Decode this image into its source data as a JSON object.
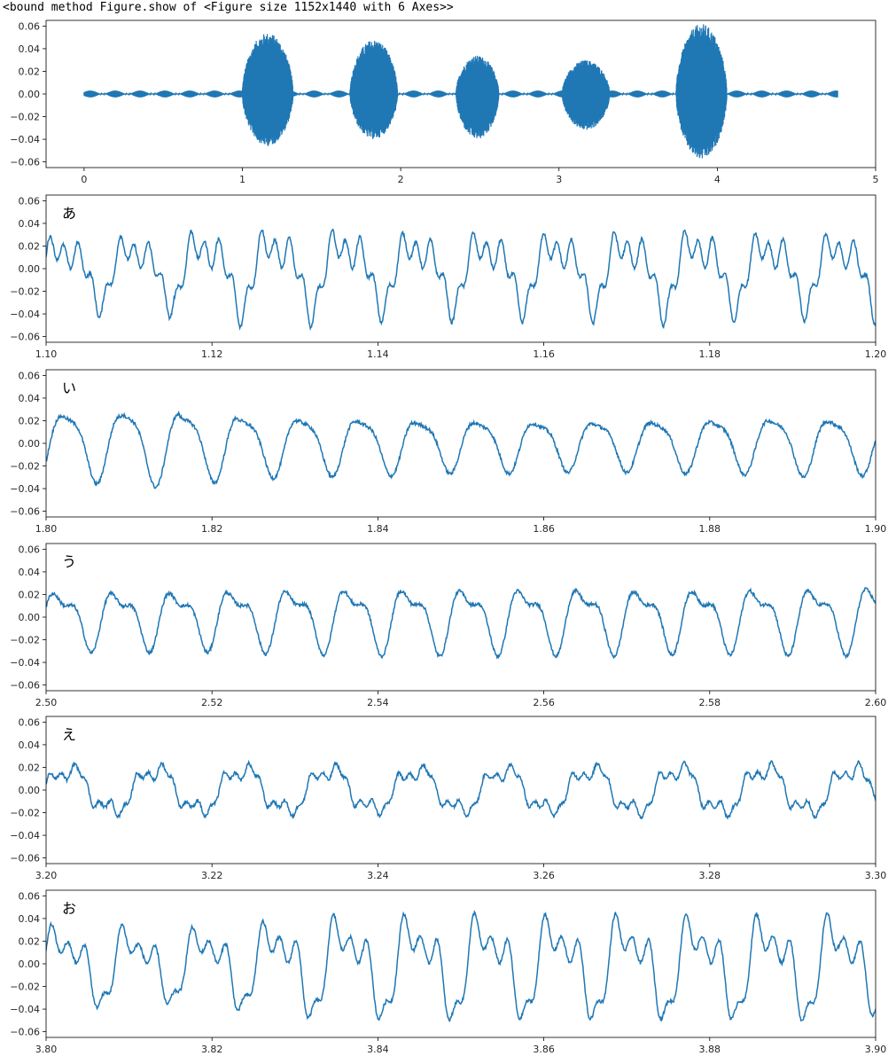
{
  "header_text": "<bound method Figure.show of <Figure size 1152x1440 with 6 Axes>>",
  "colors": {
    "line": "#1f77b4",
    "axes": "#000000",
    "text": "#262626"
  },
  "chart_data": [
    {
      "type": "line",
      "name": "full-waveform",
      "label": "",
      "xlim": [
        -0.24,
        5.0
      ],
      "ylim": [
        -0.065,
        0.065
      ],
      "xticks": [
        0,
        1,
        2,
        3,
        4,
        5
      ],
      "xtick_labels": [
        "0",
        "1",
        "2",
        "3",
        "4",
        "5"
      ],
      "yticks": [
        0.06,
        0.04,
        0.02,
        0.0,
        -0.02,
        -0.04,
        -0.06
      ],
      "ytick_labels": [
        "0.06",
        "0.04",
        "0.02",
        "0.00",
        "−0.02",
        "−0.04",
        "−0.06"
      ],
      "x_range": [
        0.0,
        4.76
      ],
      "segments": [
        {
          "vowel": "あ",
          "x": [
            1.0,
            1.32
          ],
          "ymax": 0.054,
          "ymin": -0.046
        },
        {
          "vowel": "い",
          "x": [
            1.68,
            1.98
          ],
          "ymax": 0.048,
          "ymin": -0.04
        },
        {
          "vowel": "う",
          "x": [
            2.35,
            2.62
          ],
          "ymax": 0.034,
          "ymin": -0.04
        },
        {
          "vowel": "え",
          "x": [
            3.02,
            3.32
          ],
          "ymax": 0.03,
          "ymin": -0.032
        },
        {
          "vowel": "お",
          "x": [
            3.74,
            4.06
          ],
          "ymax": 0.062,
          "ymin": -0.058
        }
      ]
    },
    {
      "type": "line",
      "name": "vowel-a",
      "label": "あ",
      "xlim": [
        1.1,
        1.2
      ],
      "ylim": [
        -0.065,
        0.065
      ],
      "xticks": [
        1.1,
        1.12,
        1.14,
        1.16,
        1.18,
        1.2
      ],
      "xtick_labels": [
        "1.10",
        "1.12",
        "1.14",
        "1.16",
        "1.18",
        "1.20"
      ],
      "yticks": [
        0.06,
        0.04,
        0.02,
        0.0,
        -0.02,
        -0.04,
        -0.06
      ],
      "ytick_labels": [
        "0.06",
        "0.04",
        "0.02",
        "0.00",
        "−0.02",
        "−0.04",
        "−0.06"
      ],
      "period": 0.0085,
      "ymax": 0.047,
      "ymin": -0.044,
      "peaks": [
        [
          1.107,
          0.04
        ],
        [
          1.114,
          0.046
        ],
        [
          1.122,
          0.048
        ],
        [
          1.13,
          0.048
        ],
        [
          1.139,
          0.044
        ],
        [
          1.147,
          0.044
        ],
        [
          1.156,
          0.044
        ],
        [
          1.164,
          0.045
        ],
        [
          1.173,
          0.047
        ],
        [
          1.181,
          0.044
        ],
        [
          1.19,
          0.043
        ],
        [
          1.198,
          0.046
        ]
      ]
    },
    {
      "type": "line",
      "name": "vowel-i",
      "label": "い",
      "xlim": [
        1.8,
        1.9
      ],
      "ylim": [
        -0.065,
        0.065
      ],
      "xticks": [
        1.8,
        1.82,
        1.84,
        1.86,
        1.88,
        1.9
      ],
      "xtick_labels": [
        "1.80",
        "1.82",
        "1.84",
        "1.86",
        "1.88",
        "1.90"
      ],
      "yticks": [
        0.06,
        0.04,
        0.02,
        0.0,
        -0.02,
        -0.04,
        -0.06
      ],
      "ytick_labels": [
        "0.06",
        "0.04",
        "0.02",
        "0.00",
        "−0.02",
        "−0.04",
        "−0.06"
      ],
      "period": 0.0071,
      "ymax": 0.038,
      "ymin": -0.038,
      "peaks": [
        [
          1.802,
          0.036
        ],
        [
          1.809,
          0.039
        ],
        [
          1.816,
          0.035
        ],
        [
          1.823,
          0.031
        ],
        [
          1.83,
          0.03
        ],
        [
          1.837,
          0.029
        ],
        [
          1.844,
          0.027
        ],
        [
          1.851,
          0.027
        ],
        [
          1.858,
          0.026
        ],
        [
          1.865,
          0.026
        ],
        [
          1.872,
          0.027
        ],
        [
          1.879,
          0.028
        ],
        [
          1.886,
          0.03
        ],
        [
          1.893,
          0.029
        ],
        [
          1.899,
          0.032
        ]
      ]
    },
    {
      "type": "line",
      "name": "vowel-u",
      "label": "う",
      "xlim": [
        2.5,
        2.6
      ],
      "ylim": [
        -0.065,
        0.065
      ],
      "xticks": [
        2.5,
        2.52,
        2.54,
        2.56,
        2.58,
        2.6
      ],
      "xtick_labels": [
        "2.50",
        "2.52",
        "2.54",
        "2.56",
        "2.58",
        "2.60"
      ],
      "yticks": [
        0.06,
        0.04,
        0.02,
        0.0,
        -0.02,
        -0.04,
        -0.06
      ],
      "ytick_labels": [
        "0.06",
        "0.04",
        "0.02",
        "0.00",
        "−0.02",
        "−0.04",
        "−0.06"
      ],
      "period": 0.007,
      "ymax": 0.034,
      "ymin": -0.038,
      "peaks": [
        [
          2.507,
          0.029
        ],
        [
          2.514,
          0.029
        ],
        [
          2.521,
          0.03
        ],
        [
          2.528,
          0.031
        ],
        [
          2.535,
          0.032
        ],
        [
          2.542,
          0.032
        ],
        [
          2.549,
          0.032
        ],
        [
          2.556,
          0.032
        ],
        [
          2.563,
          0.032
        ],
        [
          2.57,
          0.031
        ],
        [
          2.577,
          0.031
        ],
        [
          2.584,
          0.032
        ],
        [
          2.591,
          0.032
        ],
        [
          2.598,
          0.034
        ]
      ]
    },
    {
      "type": "line",
      "name": "vowel-e",
      "label": "え",
      "xlim": [
        3.2,
        3.3
      ],
      "ylim": [
        -0.065,
        0.065
      ],
      "xticks": [
        3.2,
        3.22,
        3.24,
        3.26,
        3.28,
        3.3
      ],
      "xtick_labels": [
        "3.20",
        "3.22",
        "3.24",
        "3.26",
        "3.28",
        "3.30"
      ],
      "yticks": [
        0.06,
        0.04,
        0.02,
        0.0,
        -0.02,
        -0.04,
        -0.06
      ],
      "ytick_labels": [
        "0.06",
        "0.04",
        "0.02",
        "0.00",
        "−0.02",
        "−0.04",
        "−0.06"
      ],
      "period": 0.0105,
      "ymax": 0.028,
      "ymin": -0.027,
      "peaks": [
        [
          3.204,
          0.026
        ],
        [
          3.214,
          0.026
        ],
        [
          3.225,
          0.026
        ],
        [
          3.235,
          0.025
        ],
        [
          3.246,
          0.025
        ],
        [
          3.256,
          0.026
        ],
        [
          3.267,
          0.027
        ],
        [
          3.277,
          0.027
        ],
        [
          3.288,
          0.027
        ],
        [
          3.298,
          0.021
        ]
      ]
    },
    {
      "type": "line",
      "name": "vowel-o",
      "label": "お",
      "xlim": [
        3.8,
        3.9
      ],
      "ylim": [
        -0.065,
        0.065
      ],
      "xticks": [
        3.8,
        3.82,
        3.84,
        3.86,
        3.88,
        3.9
      ],
      "xtick_labels": [
        "3.80",
        "3.82",
        "3.84",
        "3.86",
        "3.88",
        "3.90"
      ],
      "yticks": [
        0.06,
        0.04,
        0.02,
        0.0,
        -0.02,
        -0.04,
        -0.06
      ],
      "ytick_labels": [
        "0.06",
        "0.04",
        "0.02",
        "0.00",
        "−0.02",
        "−0.04",
        "−0.06"
      ],
      "period": 0.0085,
      "ymax": 0.054,
      "ymin": -0.059,
      "peaks": [
        [
          3.802,
          0.041
        ],
        [
          3.81,
          0.038
        ],
        [
          3.819,
          0.044
        ],
        [
          3.827,
          0.051
        ],
        [
          3.836,
          0.052
        ],
        [
          3.845,
          0.053
        ],
        [
          3.853,
          0.052
        ],
        [
          3.862,
          0.052
        ],
        [
          3.87,
          0.052
        ],
        [
          3.879,
          0.052
        ],
        [
          3.887,
          0.053
        ],
        [
          3.896,
          0.049
        ]
      ]
    }
  ]
}
